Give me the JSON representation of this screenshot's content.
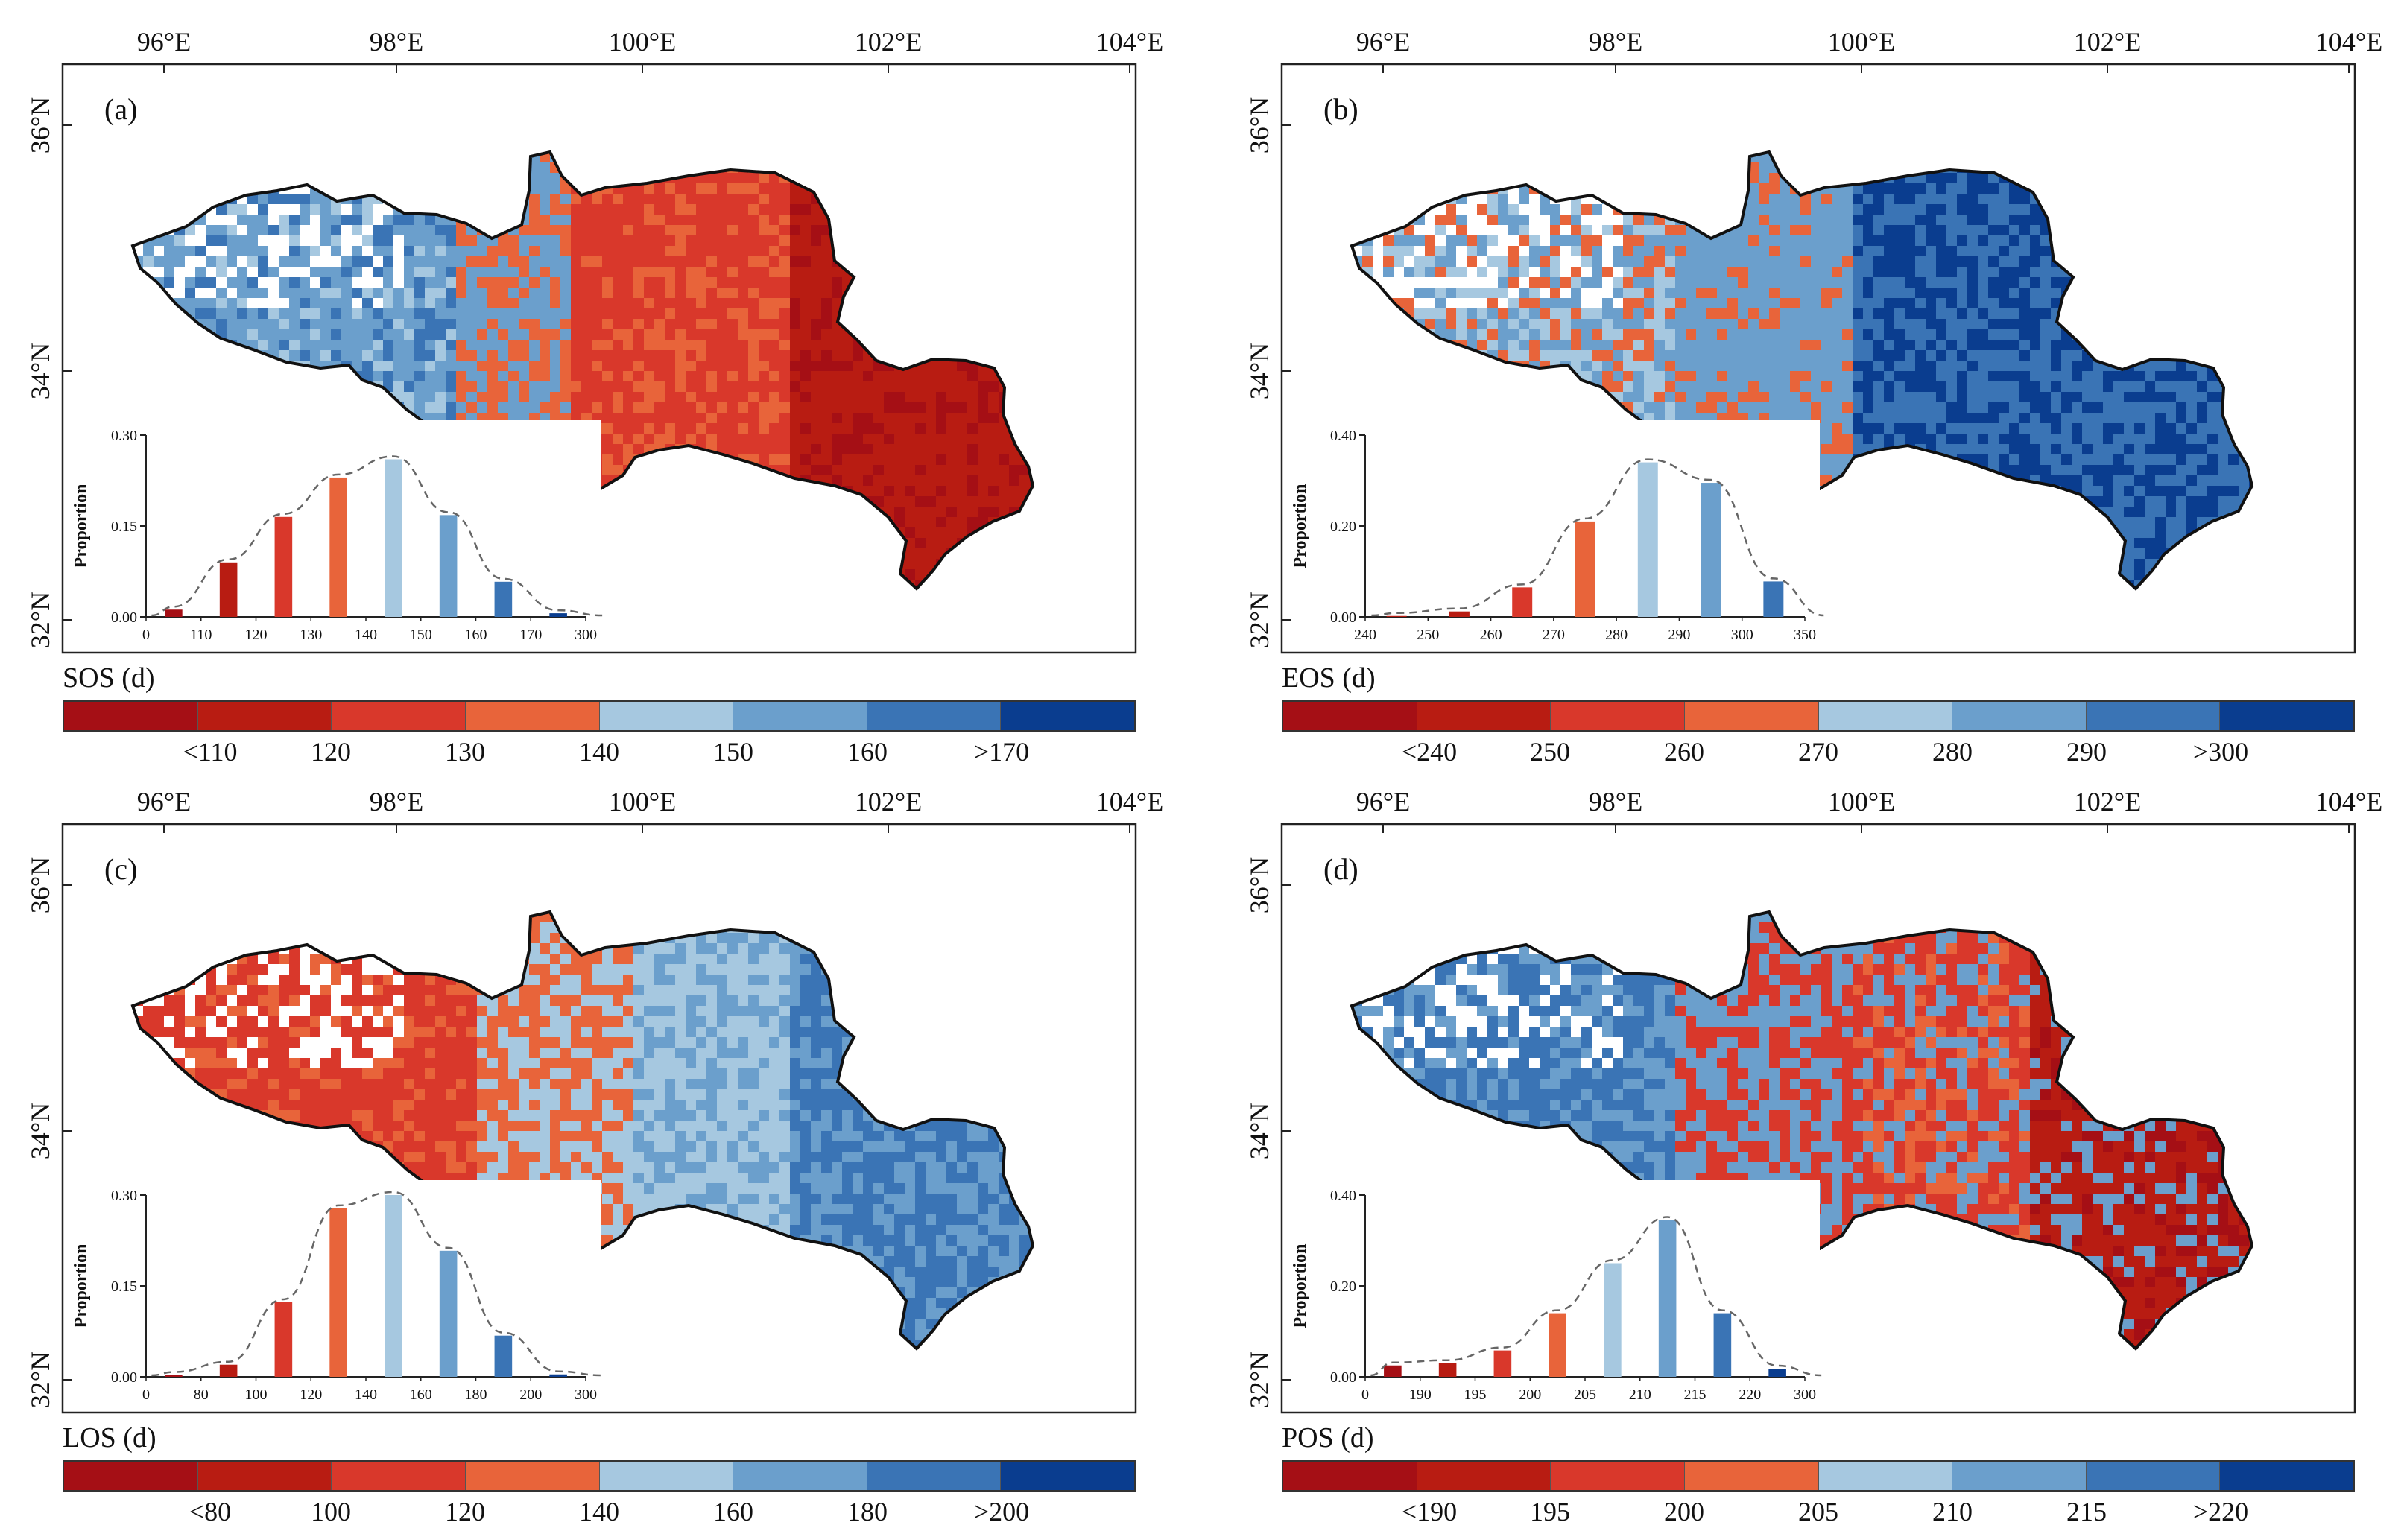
{
  "colors": {
    "ramp": [
      "#a50f15",
      "#b81c12",
      "#d9382b",
      "#e8643a",
      "#a6c8e0",
      "#6b9fcc",
      "#3a74b5",
      "#0a3d8f"
    ],
    "outline": "#111111",
    "curve": "#666666"
  },
  "lon_labels": [
    "96°E",
    "98°E",
    "100°E",
    "102°E",
    "104°E"
  ],
  "lat_labels": [
    "36°N",
    "34°N",
    "32°N"
  ],
  "panels": [
    {
      "letter": "(a)",
      "colorbar_title": "SOS (d)",
      "colorbar_labels": [
        "<110",
        "120",
        "130",
        "140",
        "150",
        "160",
        ">170"
      ],
      "pattern": "west-blue-east-red",
      "chart_data": {
        "type": "bar",
        "title": "",
        "ylabel": "Proportion",
        "yticks": [
          "0.00",
          "0.15",
          "0.30"
        ],
        "ylim": [
          0,
          0.3
        ],
        "xticks": [
          "0",
          "110",
          "120",
          "130",
          "140",
          "150",
          "160",
          "170",
          "300"
        ],
        "values": [
          0.012,
          0.09,
          0.165,
          0.23,
          0.26,
          0.168,
          0.058,
          0.006
        ],
        "curve": "normal fit (dashed)"
      }
    },
    {
      "letter": "(b)",
      "colorbar_title": "EOS (d)",
      "colorbar_labels": [
        "<240",
        "250",
        "260",
        "270",
        "280",
        "290",
        ">300"
      ],
      "pattern": "mostly-blue",
      "chart_data": {
        "type": "bar",
        "title": "",
        "ylabel": "Proportion",
        "yticks": [
          "0.00",
          "0.20",
          "0.40"
        ],
        "ylim": [
          0,
          0.4
        ],
        "xticks": [
          "240",
          "250",
          "260",
          "270",
          "280",
          "290",
          "300",
          "350"
        ],
        "values": [
          0.002,
          0.012,
          0.065,
          0.21,
          0.34,
          0.295,
          0.078
        ],
        "curve": "normal fit (dashed)"
      }
    },
    {
      "letter": "(c)",
      "colorbar_title": "LOS (d)",
      "colorbar_labels": [
        "<80",
        "100",
        "120",
        "140",
        "160",
        "180",
        ">200"
      ],
      "pattern": "west-red-east-blue",
      "chart_data": {
        "type": "bar",
        "title": "",
        "ylabel": "Proportion",
        "yticks": [
          "0.00",
          "0.15",
          "0.30"
        ],
        "ylim": [
          0,
          0.3
        ],
        "xticks": [
          "0",
          "80",
          "100",
          "120",
          "140",
          "160",
          "180",
          "200",
          "300"
        ],
        "values": [
          0.003,
          0.02,
          0.123,
          0.278,
          0.3,
          0.208,
          0.068,
          0.004
        ],
        "curve": "normal fit (dashed)"
      }
    },
    {
      "letter": "(d)",
      "colorbar_title": "POS (d)",
      "colorbar_labels": [
        "<190",
        "195",
        "200",
        "205",
        "210",
        "215",
        ">220"
      ],
      "pattern": "mixed",
      "chart_data": {
        "type": "bar",
        "title": "",
        "ylabel": "Proportion",
        "yticks": [
          "0.00",
          "0.20",
          "0.40"
        ],
        "ylim": [
          0,
          0.4
        ],
        "xticks": [
          "0",
          "190",
          "195",
          "200",
          "205",
          "210",
          "215",
          "220",
          "300"
        ],
        "values": [
          0.025,
          0.03,
          0.058,
          0.14,
          0.25,
          0.345,
          0.14,
          0.018
        ],
        "curve": "normal fit (dashed)"
      }
    }
  ]
}
